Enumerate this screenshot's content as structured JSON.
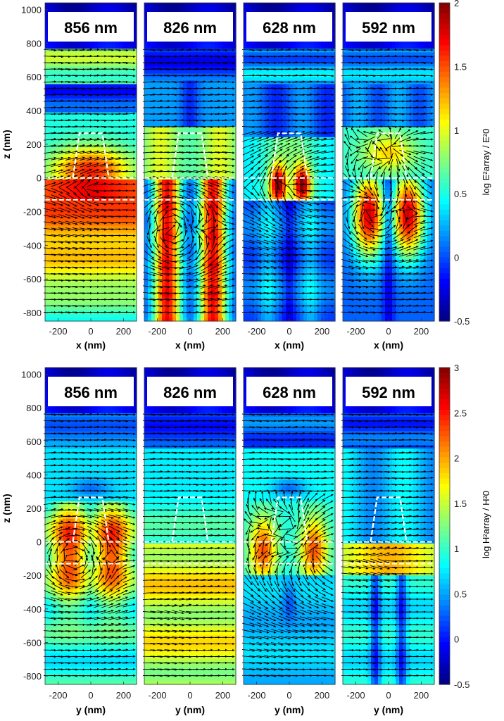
{
  "chart_data": [
    {
      "type": "heatmap",
      "title": "",
      "ylabel": "z (nm)",
      "xlabel": "x (nm)",
      "ylim": [
        -850,
        1040
      ],
      "xlim": [
        -280,
        280
      ],
      "yticks": [
        1000,
        800,
        600,
        400,
        200,
        0,
        -200,
        -400,
        -600,
        -800
      ],
      "xticks": [
        -200,
        0,
        200
      ],
      "panels": [
        {
          "label": "856 nm",
          "mode": 0
        },
        {
          "label": "826 nm",
          "mode": 1
        },
        {
          "label": "628 nm",
          "mode": 2
        },
        {
          "label": "592 nm",
          "mode": 3
        }
      ],
      "colorbar": {
        "label": "log E²array / E²0",
        "range": [
          -0.5,
          2
        ],
        "ticks": [
          "2",
          "1.5",
          "1",
          "0.5",
          "0",
          "-0.5"
        ],
        "colormap": "jet"
      },
      "overlay": "field vector arrows; white dashed trapezoid particle outline and interface lines"
    },
    {
      "type": "heatmap",
      "title": "",
      "ylabel": "z (nm)",
      "xlabel": "y (nm)",
      "ylim": [
        -850,
        1040
      ],
      "xlim": [
        -280,
        280
      ],
      "yticks": [
        1000,
        800,
        600,
        400,
        200,
        0,
        -200,
        -400,
        -600,
        -800
      ],
      "xticks": [
        -200,
        0,
        200
      ],
      "panels": [
        {
          "label": "856 nm",
          "mode": 4
        },
        {
          "label": "826 nm",
          "mode": 5
        },
        {
          "label": "628 nm",
          "mode": 6
        },
        {
          "label": "592 nm",
          "mode": 7
        }
      ],
      "colorbar": {
        "label": "log H²array / H²0",
        "range": [
          -0.5,
          3
        ],
        "ticks": [
          "3",
          "2.5",
          "2",
          "1.5",
          "1",
          "0.5",
          "0",
          "-0.5"
        ],
        "colormap": "jet"
      },
      "overlay": "field vector arrows; white dashed trapezoid particle outline and interface lines"
    }
  ],
  "colors": {
    "jet": [
      "#00007f",
      "#0000ff",
      "#007fff",
      "#00ffff",
      "#7fff7f",
      "#ffff00",
      "#ff7f00",
      "#ff0000",
      "#7f0000"
    ],
    "outline": "#ffffff",
    "arrow": "#000000"
  }
}
